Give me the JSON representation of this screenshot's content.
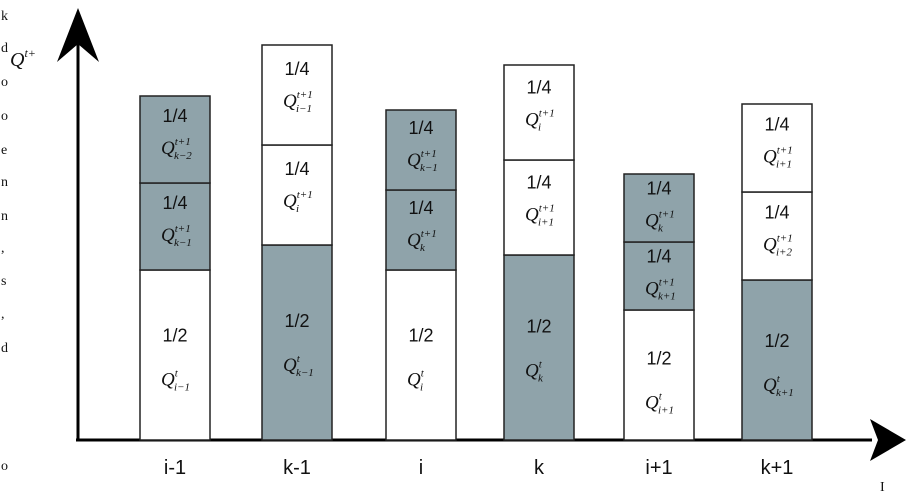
{
  "colors": {
    "shaded": "#8fa3aa",
    "white": "#ffffff",
    "outline": "#222222",
    "axis": "#000000"
  },
  "axis": {
    "y_label": "Q",
    "y_label_sup": "t+",
    "x_end_label": "I"
  },
  "left_edge_fragments": [
    "k",
    "d",
    "o",
    "o",
    "e",
    "n",
    "n",
    ",",
    "s",
    ",",
    "d",
    "o"
  ],
  "bars": [
    {
      "x_label": "i-1",
      "blocks": [
        {
          "frac": "1/2",
          "sym": "Q",
          "sup": "t",
          "sub": "i−1",
          "shaded": false,
          "share": 0.5
        },
        {
          "frac": "1/4",
          "sym": "Q",
          "sup": "t+1",
          "sub": "k−1",
          "shaded": true,
          "share": 0.25
        },
        {
          "frac": "1/4",
          "sym": "Q",
          "sup": "t+1",
          "sub": "k−2",
          "shaded": true,
          "share": 0.25
        }
      ]
    },
    {
      "x_label": "k-1",
      "blocks": [
        {
          "frac": "1/2",
          "sym": "Q",
          "sup": "t",
          "sub": "k−1",
          "shaded": true,
          "share": 0.5
        },
        {
          "frac": "1/4",
          "sym": "Q",
          "sup": "t+1",
          "sub": "i",
          "shaded": false,
          "share": 0.25
        },
        {
          "frac": "1/4",
          "sym": "Q",
          "sup": "t+1",
          "sub": "i−1",
          "shaded": false,
          "share": 0.25
        }
      ]
    },
    {
      "x_label": "i",
      "blocks": [
        {
          "frac": "1/2",
          "sym": "Q",
          "sup": "t",
          "sub": "i",
          "shaded": false,
          "share": 0.5
        },
        {
          "frac": "1/4",
          "sym": "Q",
          "sup": "t+1",
          "sub": "k",
          "shaded": true,
          "share": 0.25
        },
        {
          "frac": "1/4",
          "sym": "Q",
          "sup": "t+1",
          "sub": "k−1",
          "shaded": true,
          "share": 0.25
        }
      ]
    },
    {
      "x_label": "k",
      "blocks": [
        {
          "frac": "1/2",
          "sym": "Q",
          "sup": "t",
          "sub": "k",
          "shaded": true,
          "share": 0.5
        },
        {
          "frac": "1/4",
          "sym": "Q",
          "sup": "t+1",
          "sub": "i+1",
          "shaded": false,
          "share": 0.25
        },
        {
          "frac": "1/4",
          "sym": "Q",
          "sup": "t+1",
          "sub": "i",
          "shaded": false,
          "share": 0.25
        }
      ]
    },
    {
      "x_label": "i+1",
      "blocks": [
        {
          "frac": "1/2",
          "sym": "Q",
          "sup": "t",
          "sub": "i+1",
          "shaded": false,
          "share": 0.5
        },
        {
          "frac": "1/4",
          "sym": "Q",
          "sup": "t+1",
          "sub": "k+1",
          "shaded": true,
          "share": 0.25
        },
        {
          "frac": "1/4",
          "sym": "Q",
          "sup": "t+1",
          "sub": "k",
          "shaded": true,
          "share": 0.25
        }
      ]
    },
    {
      "x_label": "k+1",
      "blocks": [
        {
          "frac": "1/2",
          "sym": "Q",
          "sup": "t",
          "sub": "k+1",
          "shaded": true,
          "share": 0.5
        },
        {
          "frac": "1/4",
          "sym": "Q",
          "sup": "t+1",
          "sub": "i+2",
          "shaded": false,
          "share": 0.25
        },
        {
          "frac": "1/4",
          "sym": "Q",
          "sup": "t+1",
          "sub": "i+1",
          "shaded": false,
          "share": 0.25
        }
      ]
    }
  ]
}
